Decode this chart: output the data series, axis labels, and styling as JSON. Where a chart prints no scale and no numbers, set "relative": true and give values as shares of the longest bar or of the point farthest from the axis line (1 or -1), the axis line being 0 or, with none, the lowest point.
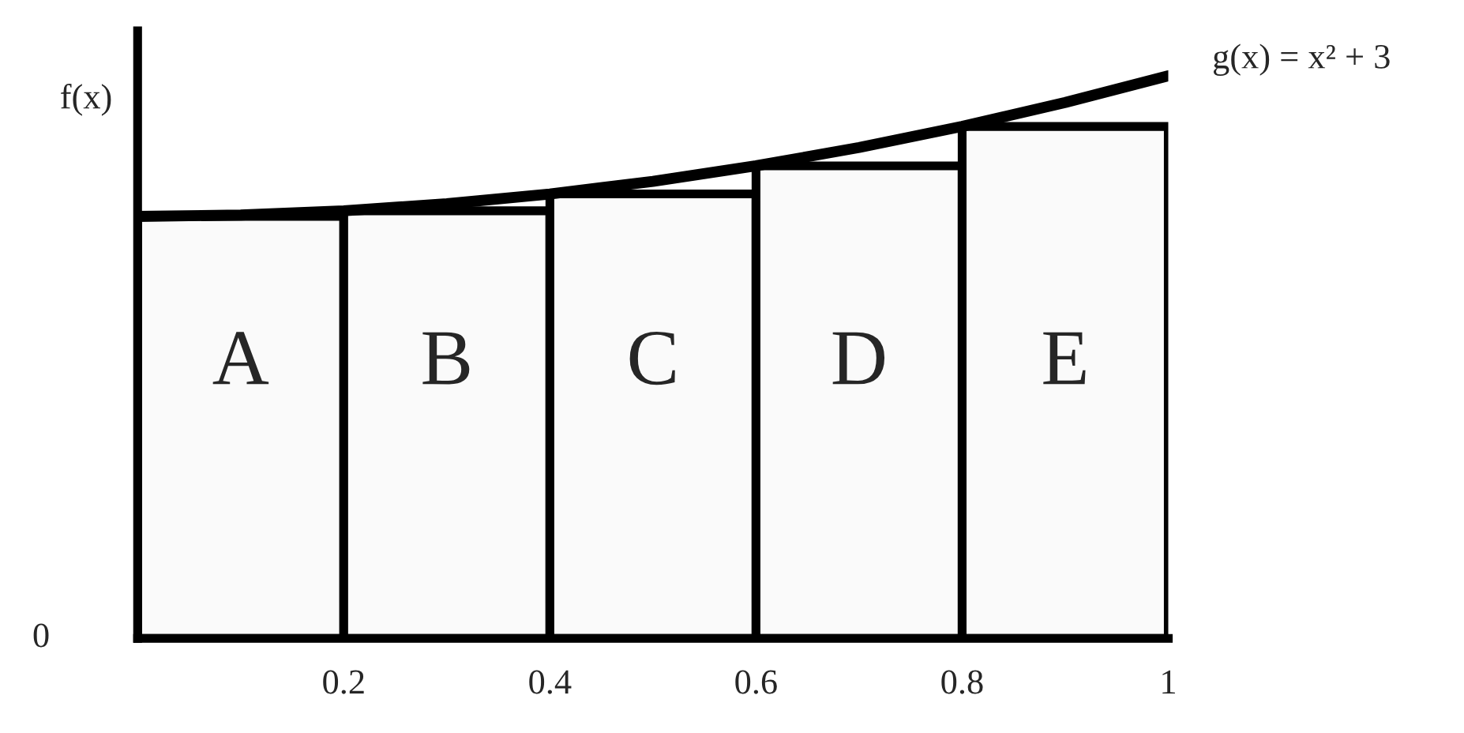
{
  "chart_data": {
    "type": "bar",
    "relative": true,
    "ylabel": "f(x)",
    "xlim": [
      0,
      1
    ],
    "xticks": [
      0.2,
      0.4,
      0.6,
      0.8,
      1
    ],
    "grid": false,
    "series": [
      {
        "color": "#fafafa",
        "x": [
          0.1,
          0.3,
          0.5,
          0.7,
          0.9
        ],
        "values": [
          0.75,
          0.76,
          0.79,
          0.84,
          0.91
        ]
      },
      {
        "type": "line",
        "color": "#000000",
        "x": [
          0,
          0.1,
          0.2,
          0.3,
          0.4,
          0.5,
          0.6,
          0.7,
          0.8,
          0.9,
          1
        ],
        "values": [
          0.75,
          0.7525,
          0.76,
          0.7725,
          0.79,
          0.8125,
          0.84,
          0.8725,
          0.91,
          0.9525,
          1
        ]
      }
    ],
    "annotations": [
      "A",
      "B",
      "C",
      "D",
      "E",
      {
        "text": "g(x) = x² + 3",
        "x": 1,
        "y": 1
      },
      {
        "text": "0",
        "x": 0,
        "y": 0
      }
    ]
  }
}
